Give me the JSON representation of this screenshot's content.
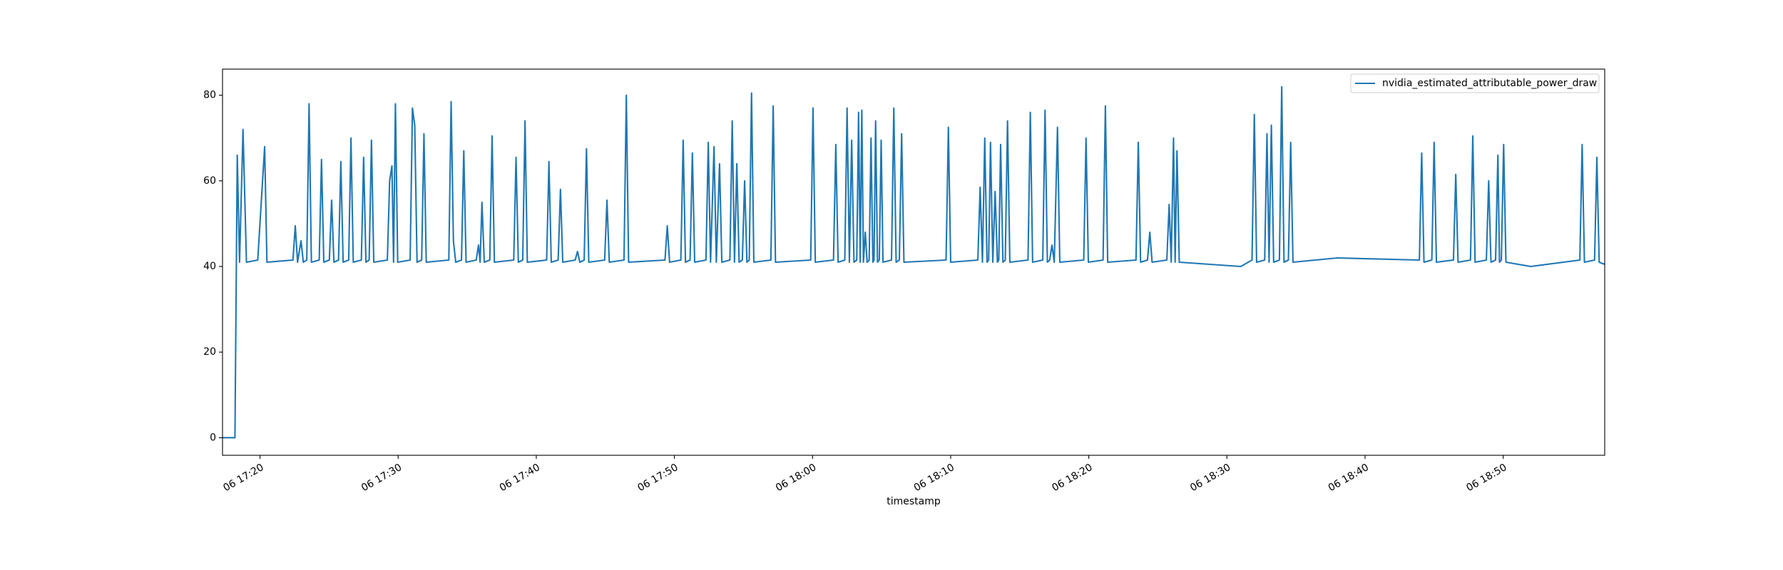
{
  "chart_data": {
    "type": "line",
    "xlabel": "timestamp",
    "x": [
      "06 17:17:17",
      "06 17:18:11",
      "06 17:18:21",
      "06 17:18:31",
      "06 17:18:46",
      "06 17:19:01",
      "06 17:19:50",
      "06 17:20:20",
      "06 17:20:30",
      "06 17:22:23",
      "06 17:22:33",
      "06 17:22:43",
      "06 17:22:58",
      "06 17:23:08",
      "06 17:23:23",
      "06 17:23:33",
      "06 17:23:43",
      "06 17:24:17",
      "06 17:24:27",
      "06 17:24:37",
      "06 17:25:01",
      "06 17:25:11",
      "06 17:25:21",
      "06 17:25:41",
      "06 17:25:51",
      "06 17:26:01",
      "06 17:26:25",
      "06 17:26:35",
      "06 17:26:45",
      "06 17:27:20",
      "06 17:27:30",
      "06 17:27:40",
      "06 17:27:54",
      "06 17:28:04",
      "06 17:28:14",
      "06 17:29:13",
      "06 17:29:23",
      "06 17:29:33",
      "06 17:29:40",
      "06 17:29:48",
      "06 17:29:58",
      "06 17:30:52",
      "06 17:31:02",
      "06 17:31:12",
      "06 17:31:22",
      "06 17:31:42",
      "06 17:31:52",
      "06 17:32:02",
      "06 17:33:40",
      "06 17:33:50",
      "06 17:34:00",
      "06 17:34:10",
      "06 17:34:35",
      "06 17:34:45",
      "06 17:34:55",
      "06 17:35:39",
      "06 17:35:49",
      "06 17:35:56",
      "06 17:36:04",
      "06 17:36:14",
      "06 17:36:38",
      "06 17:36:48",
      "06 17:36:58",
      "06 17:38:22",
      "06 17:38:32",
      "06 17:38:42",
      "06 17:39:01",
      "06 17:39:11",
      "06 17:39:21",
      "06 17:40:45",
      "06 17:40:55",
      "06 17:41:05",
      "06 17:41:35",
      "06 17:41:45",
      "06 17:41:55",
      "06 17:42:49",
      "06 17:42:59",
      "06 17:43:09",
      "06 17:43:28",
      "06 17:43:38",
      "06 17:43:48",
      "06 17:44:57",
      "06 17:45:07",
      "06 17:45:17",
      "06 17:46:21",
      "06 17:46:31",
      "06 17:46:41",
      "06 17:49:19",
      "06 17:49:29",
      "06 17:49:39",
      "06 17:50:28",
      "06 17:50:38",
      "06 17:50:48",
      "06 17:51:08",
      "06 17:51:18",
      "06 17:51:28",
      "06 17:52:17",
      "06 17:52:27",
      "06 17:52:37",
      "06 17:52:52",
      "06 17:53:02",
      "06 17:53:16",
      "06 17:53:26",
      "06 17:54:01",
      "06 17:54:11",
      "06 17:54:21",
      "06 17:54:31",
      "06 17:54:41",
      "06 17:54:55",
      "06 17:55:05",
      "06 17:55:15",
      "06 17:55:25",
      "06 17:55:35",
      "06 17:55:45",
      "06 17:56:59",
      "06 17:57:09",
      "06 17:57:19",
      "06 17:59:52",
      "06 18:00:02",
      "06 18:00:12",
      "06 18:01:31",
      "06 18:01:41",
      "06 18:01:51",
      "06 18:02:20",
      "06 18:02:30",
      "06 18:02:40",
      "06 18:02:50",
      "06 18:03:00",
      "06 18:03:12",
      "06 18:03:20",
      "06 18:03:27",
      "06 18:03:34",
      "06 18:03:41",
      "06 18:03:49",
      "06 18:03:57",
      "06 18:04:06",
      "06 18:04:14",
      "06 18:04:22",
      "06 18:04:27",
      "06 18:04:34",
      "06 18:04:42",
      "06 18:04:50",
      "06 18:04:58",
      "06 18:05:06",
      "06 18:05:43",
      "06 18:05:53",
      "06 18:06:03",
      "06 18:06:17",
      "06 18:06:27",
      "06 18:06:37",
      "06 18:09:40",
      "06 18:09:50",
      "06 18:10:00",
      "06 18:11:58",
      "06 18:12:08",
      "06 18:12:18",
      "06 18:12:28",
      "06 18:12:38",
      "06 18:12:45",
      "06 18:12:53",
      "06 18:13:03",
      "06 18:13:13",
      "06 18:13:23",
      "06 18:13:29",
      "06 18:13:37",
      "06 18:13:47",
      "06 18:13:57",
      "06 18:14:07",
      "06 18:14:17",
      "06 18:15:36",
      "06 18:15:46",
      "06 18:15:56",
      "06 18:16:40",
      "06 18:16:50",
      "06 18:17:00",
      "06 18:17:10",
      "06 18:17:20",
      "06 18:17:30",
      "06 18:17:44",
      "06 18:17:54",
      "06 18:19:38",
      "06 18:19:48",
      "06 18:19:58",
      "06 18:21:02",
      "06 18:21:12",
      "06 18:21:22",
      "06 18:23:25",
      "06 18:23:35",
      "06 18:23:45",
      "06 18:24:15",
      "06 18:24:25",
      "06 18:24:35",
      "06 18:25:39",
      "06 18:25:49",
      "06 18:25:58",
      "06 18:26:08",
      "06 18:26:15",
      "06 18:26:23",
      "06 18:26:33",
      "06 18:31:00",
      "06 18:31:49",
      "06 18:31:59",
      "06 18:32:09",
      "06 18:32:44",
      "06 18:32:54",
      "06 18:33:03",
      "06 18:33:13",
      "06 18:33:23",
      "06 18:33:48",
      "06 18:33:58",
      "06 18:34:08",
      "06 18:34:27",
      "06 18:34:37",
      "06 18:34:47",
      "06 18:38:00",
      "06 18:43:56",
      "06 18:44:06",
      "06 18:44:16",
      "06 18:44:50",
      "06 18:45:00",
      "06 18:45:10",
      "06 18:46:24",
      "06 18:46:34",
      "06 18:46:44",
      "06 18:47:38",
      "06 18:47:48",
      "06 18:47:58",
      "06 18:48:47",
      "06 18:48:57",
      "06 18:49:07",
      "06 18:49:27",
      "06 18:49:37",
      "06 18:49:44",
      "06 18:49:52",
      "06 18:50:02",
      "06 18:50:12",
      "06 18:52:00",
      "06 18:55:33",
      "06 18:55:43",
      "06 18:55:53",
      "06 18:56:37",
      "06 18:56:47",
      "06 18:56:57",
      "06 18:57:21"
    ],
    "series": [
      {
        "name": "nvidia_estimated_attributable_power_draw",
        "color": "#1f77b4",
        "values": [
          0,
          0,
          66,
          41,
          72,
          41,
          41.5,
          68,
          41,
          41.5,
          49.5,
          41,
          46,
          41,
          41.5,
          78,
          41,
          41.5,
          65,
          41,
          41.5,
          55.5,
          41,
          41.5,
          64.5,
          41,
          41.5,
          70,
          41,
          41.5,
          65.5,
          41,
          41.5,
          69.5,
          41,
          41.5,
          60,
          63.5,
          41,
          78,
          41,
          41.5,
          77,
          73,
          41,
          41.5,
          71,
          41,
          41.5,
          78.5,
          46,
          41,
          41.5,
          67,
          41,
          41.5,
          45,
          41,
          55,
          41,
          41.5,
          70.5,
          41,
          41.5,
          65.5,
          41,
          41.5,
          74,
          41,
          41.5,
          64.5,
          41,
          41.5,
          58,
          41,
          41.5,
          43.5,
          41,
          41.5,
          67.5,
          41,
          41.5,
          55.5,
          41,
          41.5,
          80,
          41,
          41.5,
          49.5,
          41,
          41.5,
          69.5,
          41,
          41.5,
          66.5,
          41,
          41.5,
          69,
          41,
          68,
          41,
          64,
          41,
          41.5,
          74,
          41,
          64,
          41,
          41.5,
          60,
          41,
          41.5,
          80.5,
          41,
          41.5,
          77.5,
          41,
          41.5,
          77,
          41,
          41.5,
          68.5,
          41,
          41.5,
          77,
          41,
          69.5,
          41,
          41.5,
          76,
          41,
          76.5,
          41,
          48,
          41,
          41.5,
          70,
          41,
          41.5,
          74,
          41,
          41.5,
          69.5,
          41,
          41.5,
          77,
          41,
          41.5,
          71,
          41,
          41.5,
          72.5,
          41,
          41.5,
          58.5,
          41,
          70,
          41,
          41.5,
          69,
          41,
          57.5,
          41,
          41.5,
          68.5,
          41,
          41.5,
          74,
          41,
          41.5,
          76,
          41,
          41.5,
          76.5,
          41,
          41.5,
          45,
          41,
          72.5,
          41,
          41.5,
          70,
          41,
          41.5,
          77.5,
          41,
          41.5,
          69,
          41,
          41.5,
          48,
          41,
          41.5,
          54.5,
          41,
          70,
          41,
          67,
          41,
          40,
          41.5,
          75.5,
          41,
          41.5,
          71,
          41,
          73,
          41,
          41.5,
          82,
          41,
          41.5,
          69,
          41,
          42,
          41.5,
          66.5,
          41,
          41.5,
          69,
          41,
          41.5,
          61.5,
          41,
          41.5,
          70.5,
          41,
          41.5,
          60,
          41,
          41.5,
          66,
          41,
          41.5,
          68.5,
          41,
          40,
          41.5,
          68.5,
          41,
          41.5,
          65.5,
          41,
          40.5
        ]
      }
    ],
    "xlim": [
      "06 17:17:17",
      "06 18:57:21"
    ],
    "xticks": [
      "06 17:20",
      "06 17:30",
      "06 17:40",
      "06 17:50",
      "06 18:00",
      "06 18:10",
      "06 18:20",
      "06 18:30",
      "06 18:40",
      "06 18:50"
    ],
    "ylim": [
      -4.1,
      86.1
    ],
    "yticks": [
      0,
      20,
      40,
      60,
      80
    ],
    "grid": false,
    "legend": "upper right"
  }
}
